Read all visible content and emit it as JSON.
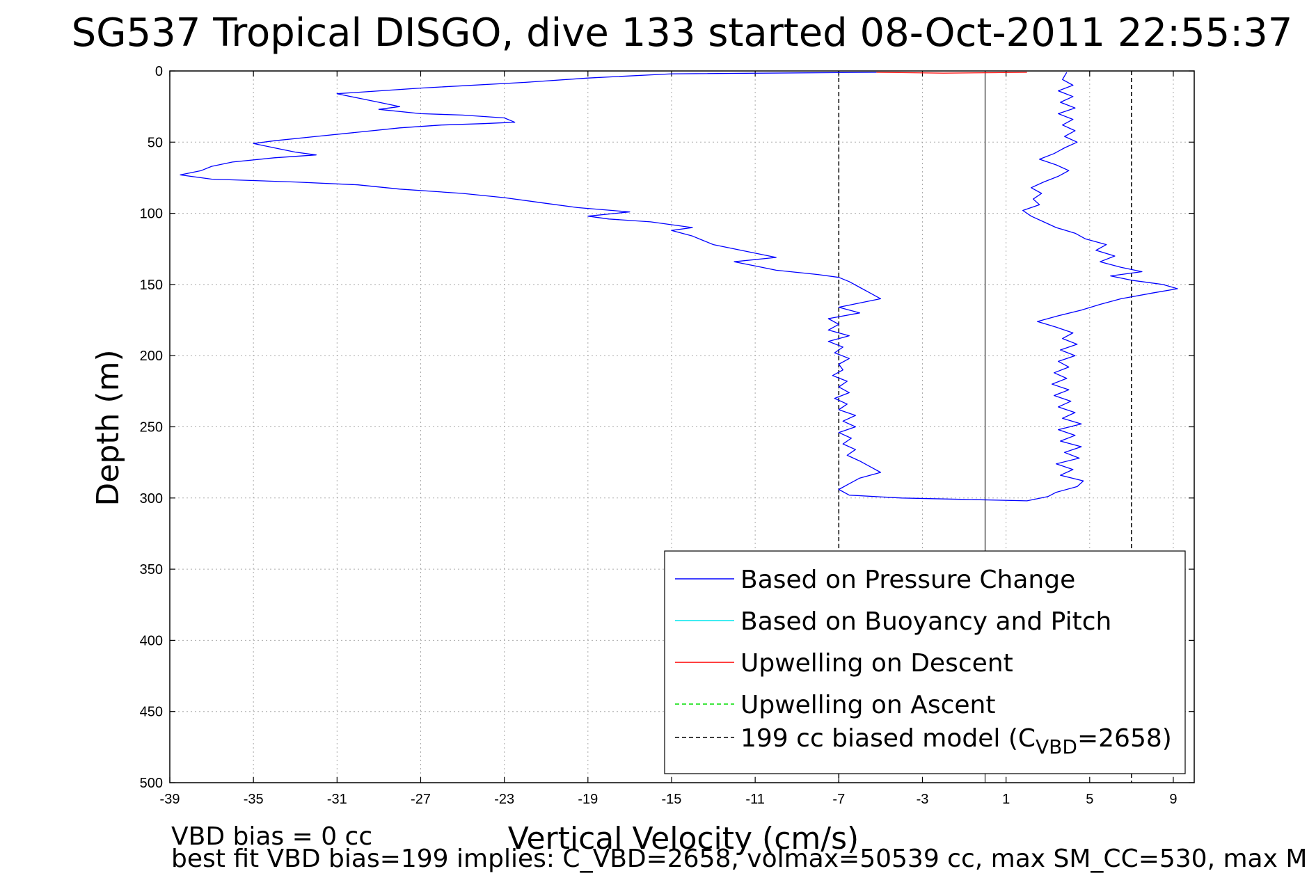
{
  "chart_data": {
    "type": "line",
    "title": "SG537 Tropical DISGO, dive 133 started 08-Oct-2011 22:55:37",
    "xlabel": "Vertical Velocity (cm/s)",
    "ylabel": "Depth (m)",
    "xlim": [
      -39,
      10
    ],
    "ylim": [
      0,
      500
    ],
    "y_reversed": true,
    "grid": true,
    "x_ticks": [
      -39,
      -35,
      -31,
      -27,
      -23,
      -19,
      -15,
      -11,
      -7,
      -3,
      1,
      5,
      9
    ],
    "y_ticks": [
      0,
      50,
      100,
      150,
      200,
      250,
      300,
      350,
      400,
      450,
      500
    ],
    "legend_position": "bottom-right",
    "series": [
      {
        "name": "Based on Pressure Change",
        "color": "#0000ff",
        "style": "solid",
        "role": "descent",
        "points": [
          [
            -5.2,
            1
          ],
          [
            -15,
            2
          ],
          [
            -19,
            5
          ],
          [
            -22,
            8
          ],
          [
            -27,
            12
          ],
          [
            -31,
            16
          ],
          [
            -30,
            19
          ],
          [
            -29,
            22
          ],
          [
            -28,
            25
          ],
          [
            -29,
            27
          ],
          [
            -27,
            30
          ],
          [
            -25,
            31
          ],
          [
            -23,
            33
          ],
          [
            -22.5,
            36
          ],
          [
            -24,
            37
          ],
          [
            -26,
            38
          ],
          [
            -28,
            40
          ],
          [
            -30,
            43
          ],
          [
            -32,
            46
          ],
          [
            -34,
            49
          ],
          [
            -35,
            51
          ],
          [
            -34,
            54
          ],
          [
            -33,
            57
          ],
          [
            -32,
            59
          ],
          [
            -34,
            61
          ],
          [
            -36,
            64
          ],
          [
            -37,
            67
          ],
          [
            -37.5,
            70
          ],
          [
            -38.5,
            73
          ],
          [
            -37,
            76
          ],
          [
            -33,
            78
          ],
          [
            -30,
            80
          ],
          [
            -28,
            83
          ],
          [
            -25,
            86
          ],
          [
            -23,
            89
          ],
          [
            -21,
            93
          ],
          [
            -19.5,
            96
          ],
          [
            -17,
            99
          ],
          [
            -19,
            102
          ],
          [
            -18,
            104
          ],
          [
            -16,
            106
          ],
          [
            -15,
            108
          ],
          [
            -14,
            110
          ],
          [
            -15,
            112
          ],
          [
            -14,
            116
          ],
          [
            -13.5,
            119
          ],
          [
            -13,
            122
          ],
          [
            -12,
            125
          ],
          [
            -11,
            128
          ],
          [
            -10,
            131
          ],
          [
            -12,
            134
          ],
          [
            -11,
            137
          ],
          [
            -10,
            140
          ],
          [
            -8,
            143
          ],
          [
            -7,
            145
          ],
          [
            -6.5,
            148
          ],
          [
            -6,
            152
          ],
          [
            -5.5,
            156
          ],
          [
            -5,
            160
          ],
          [
            -6,
            163
          ],
          [
            -7,
            166
          ],
          [
            -6,
            170
          ],
          [
            -7.5,
            174
          ],
          [
            -7,
            178
          ],
          [
            -7.5,
            182
          ],
          [
            -6.5,
            186
          ],
          [
            -7.5,
            190
          ],
          [
            -6.8,
            194
          ],
          [
            -7.2,
            198
          ],
          [
            -6.5,
            202
          ],
          [
            -7,
            206
          ],
          [
            -6.8,
            210
          ],
          [
            -7.3,
            214
          ],
          [
            -6.6,
            218
          ],
          [
            -7,
            222
          ],
          [
            -6.5,
            226
          ],
          [
            -7.2,
            230
          ],
          [
            -6.6,
            234
          ],
          [
            -7,
            238
          ],
          [
            -6.2,
            242
          ],
          [
            -6.8,
            246
          ],
          [
            -6.2,
            250
          ],
          [
            -7,
            254
          ],
          [
            -6.4,
            258
          ],
          [
            -6.8,
            262
          ],
          [
            -6.2,
            266
          ],
          [
            -6.6,
            270
          ],
          [
            -6,
            274
          ],
          [
            -5.5,
            278
          ],
          [
            -5,
            282
          ],
          [
            -6,
            286
          ],
          [
            -6.5,
            290
          ],
          [
            -7,
            294
          ],
          [
            -6.5,
            298
          ],
          [
            -4,
            300
          ],
          [
            -1,
            301
          ],
          [
            2,
            302
          ],
          [
            3,
            299
          ],
          [
            3.4,
            296
          ],
          [
            4.4,
            292
          ],
          [
            4.7,
            288
          ],
          [
            3.6,
            284
          ],
          [
            4.2,
            280
          ],
          [
            3.4,
            276
          ],
          [
            4.5,
            272
          ],
          [
            3.8,
            268
          ],
          [
            4.6,
            264
          ],
          [
            3.6,
            260
          ],
          [
            4.3,
            256
          ],
          [
            3.5,
            252
          ],
          [
            4.6,
            248
          ],
          [
            3.7,
            244
          ],
          [
            4.3,
            240
          ],
          [
            3.5,
            236
          ],
          [
            4.1,
            232
          ],
          [
            3.3,
            228
          ],
          [
            4,
            224
          ],
          [
            3.2,
            220
          ],
          [
            3.9,
            216
          ],
          [
            3.3,
            212
          ],
          [
            4,
            208
          ],
          [
            3.5,
            204
          ],
          [
            4.3,
            200
          ],
          [
            3.6,
            196
          ],
          [
            4.4,
            192
          ],
          [
            3.7,
            188
          ],
          [
            4.2,
            184
          ],
          [
            3.4,
            180
          ],
          [
            2.5,
            176
          ],
          [
            3.5,
            172
          ],
          [
            4.6,
            168
          ],
          [
            5.5,
            164
          ],
          [
            6.5,
            160
          ],
          [
            8,
            156
          ],
          [
            9.2,
            153
          ],
          [
            8.5,
            150
          ],
          [
            7,
            147
          ],
          [
            6,
            144
          ],
          [
            7.5,
            141
          ],
          [
            6.5,
            138
          ],
          [
            5.5,
            134
          ],
          [
            6.2,
            130
          ],
          [
            5.3,
            126
          ],
          [
            5.8,
            122
          ],
          [
            4.8,
            118
          ],
          [
            4.3,
            114
          ],
          [
            3.4,
            110
          ],
          [
            2.8,
            106
          ],
          [
            2.2,
            102
          ],
          [
            1.8,
            98
          ],
          [
            2.6,
            94
          ],
          [
            2.3,
            90
          ],
          [
            2.7,
            86
          ],
          [
            2.2,
            82
          ],
          [
            2.8,
            78
          ],
          [
            3.5,
            74
          ],
          [
            4,
            70
          ],
          [
            3.4,
            66
          ],
          [
            2.6,
            62
          ],
          [
            3.3,
            58
          ],
          [
            3.8,
            54
          ],
          [
            4.4,
            50
          ],
          [
            3.8,
            46
          ],
          [
            4.3,
            42
          ],
          [
            3.7,
            38
          ],
          [
            4.2,
            34
          ],
          [
            3.5,
            30
          ],
          [
            4.3,
            26
          ],
          [
            3.6,
            22
          ],
          [
            4.2,
            18
          ],
          [
            3.5,
            14
          ],
          [
            4.2,
            10
          ],
          [
            3.7,
            6
          ],
          [
            3.9,
            1
          ]
        ]
      },
      {
        "name": "Based on Buoyancy and Pitch",
        "color": "#00e5ee",
        "style": "solid",
        "points": []
      },
      {
        "name": "Upwelling on Descent",
        "color": "#ff0000",
        "style": "solid",
        "points": [
          [
            -5.2,
            1
          ],
          [
            -2,
            1.5
          ],
          [
            0.5,
            1.2
          ],
          [
            2,
            1
          ]
        ]
      },
      {
        "name": "Upwelling on Ascent",
        "color": "#00dd00",
        "style": "dashed",
        "points": []
      },
      {
        "name": "199 cc biased model (C",
        "name_sub": "VBD",
        "name_suffix": "=2658)",
        "color": "#000000",
        "style": "dashed",
        "lines": [
          [
            [
              -7,
              0
            ],
            [
              -7,
              500
            ]
          ],
          [
            [
              7,
              0
            ],
            [
              7,
              500
            ]
          ]
        ]
      }
    ],
    "zero_line": {
      "x": 0,
      "color": "#555555"
    },
    "annotations": [
      "VBD bias = 0 cc",
      "best fit VBD bias=199 implies: C_VBD=2658, volmax=50539 cc, max SM_CC=530, max M"
    ]
  }
}
